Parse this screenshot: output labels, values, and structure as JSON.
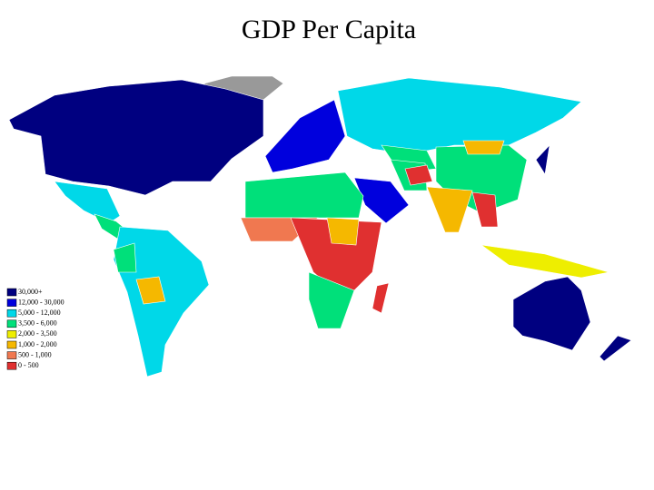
{
  "title": "GDP Per Capita",
  "legend": {
    "items": [
      {
        "label": "30,000+",
        "color": "#000080"
      },
      {
        "label": "12,000 - 30,000",
        "color": "#0000dd"
      },
      {
        "label": "5,000 - 12,000",
        "color": "#00d8e8"
      },
      {
        "label": "3,500 - 6,000",
        "color": "#00e07a"
      },
      {
        "label": "2,000 - 3,500",
        "color": "#eeee00"
      },
      {
        "label": "1,000 - 2,000",
        "color": "#f5b800"
      },
      {
        "label": "500 - 1,000",
        "color": "#f07850"
      },
      {
        "label": "0 - 500",
        "color": "#e03030"
      }
    ]
  }
}
